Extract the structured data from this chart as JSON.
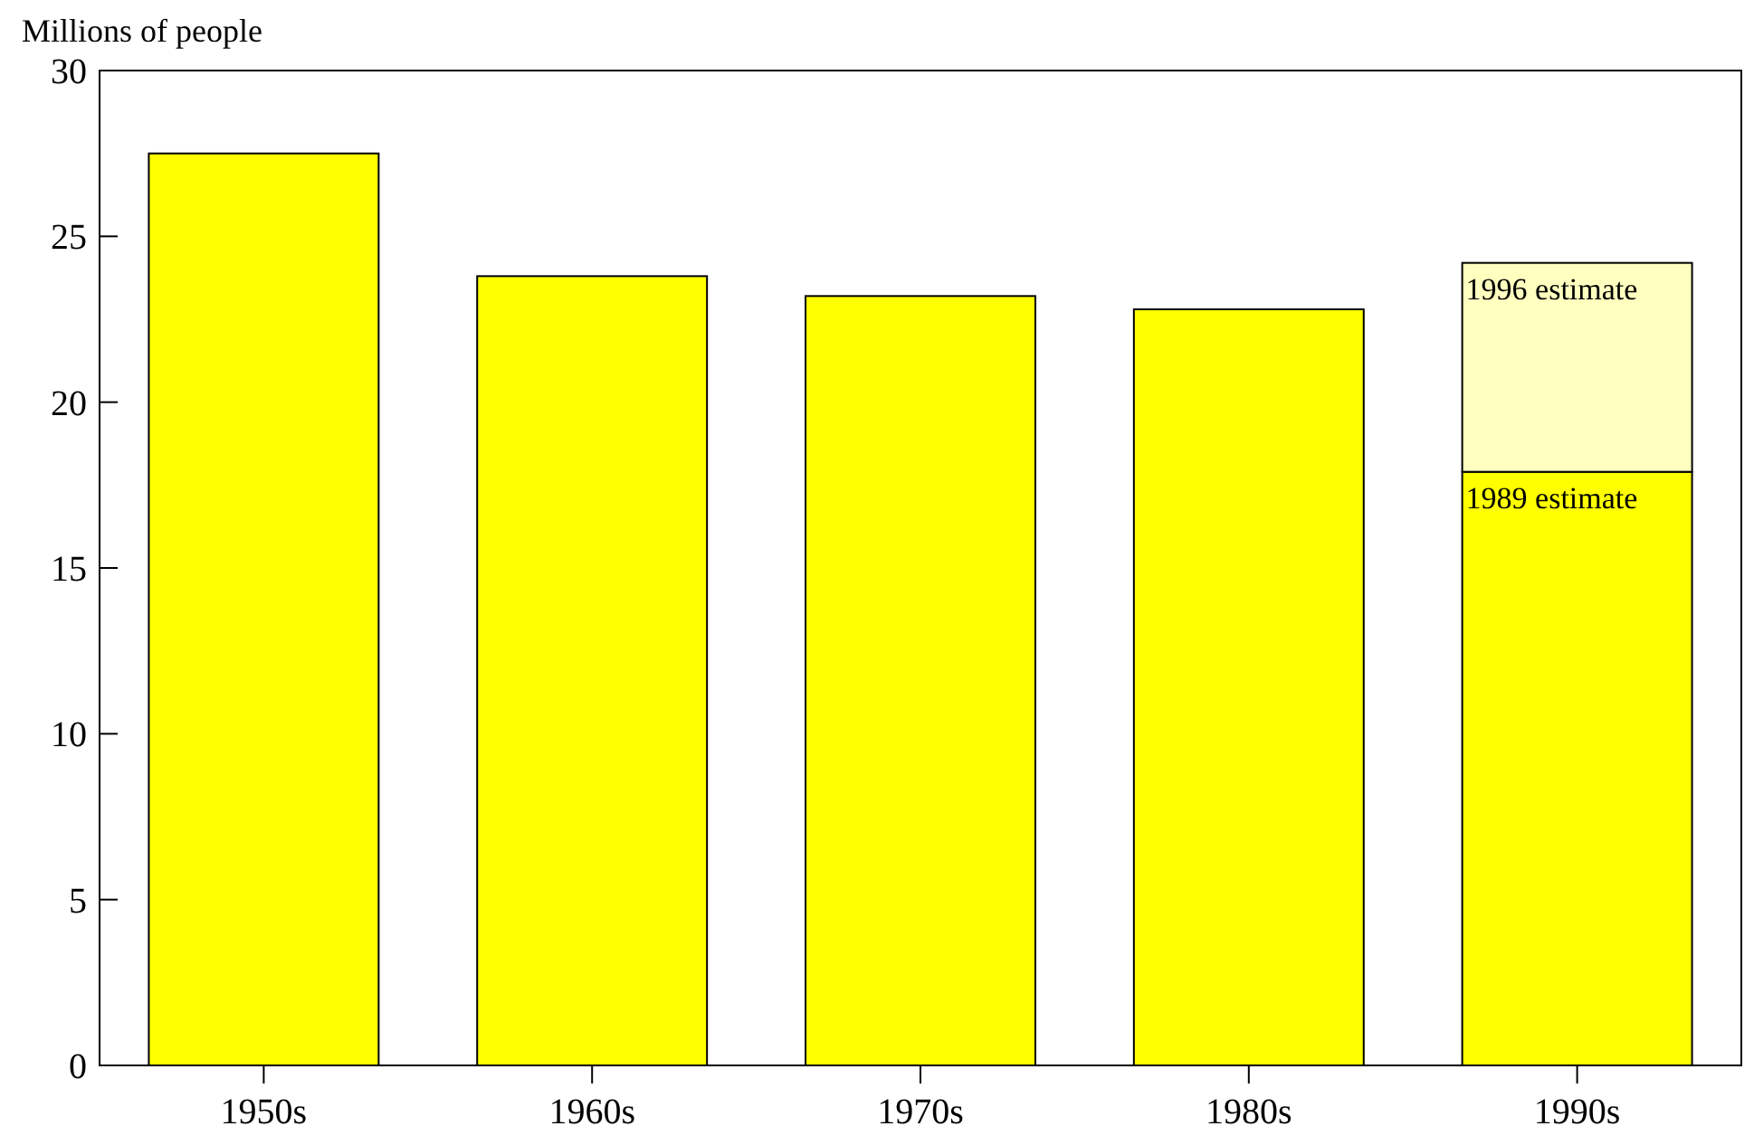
{
  "chart_data": {
    "type": "bar",
    "ylabel": "Millions of people",
    "stacked": true,
    "categories": [
      "1950s",
      "1960s",
      "1970s",
      "1980s",
      "1990s"
    ],
    "series": [
      {
        "color": "#ffff00",
        "values": [
          27.5,
          23.8,
          23.2,
          22.8,
          17.9
        ]
      },
      {
        "color": "#ffffc0",
        "values": [
          null,
          null,
          null,
          null,
          6.3
        ]
      }
    ],
    "ylim": [
      0,
      30
    ],
    "yticks": [
      0,
      5,
      10,
      15,
      20,
      25,
      30
    ],
    "grid": false,
    "annotations": [
      {
        "text": "1996 estimate",
        "x": "1990s",
        "y": 24.2
      },
      {
        "text": "1989 estimate",
        "x": "1990s",
        "y": 17.9
      }
    ]
  }
}
